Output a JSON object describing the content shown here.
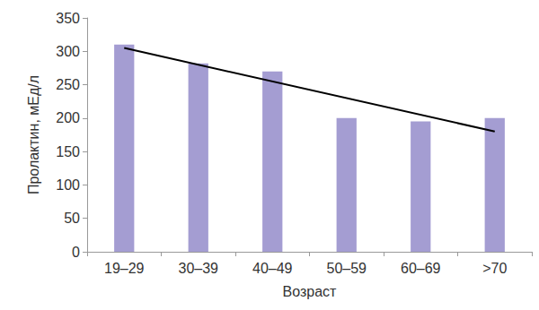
{
  "chart_data": {
    "type": "bar",
    "categories": [
      "19–29",
      "30–39",
      "40–49",
      "50–59",
      "60–69",
      ">70"
    ],
    "values": [
      310,
      282,
      270,
      200,
      195,
      200
    ],
    "color": "#a49dd2",
    "trend": [
      305,
      180
    ],
    "x_label": "Возраст",
    "y_label": "Пролактин, мЕд/л",
    "ylim": [
      0,
      350
    ],
    "yticks": [
      0,
      50,
      100,
      150,
      200,
      250,
      300,
      350
    ],
    "grid": false
  }
}
